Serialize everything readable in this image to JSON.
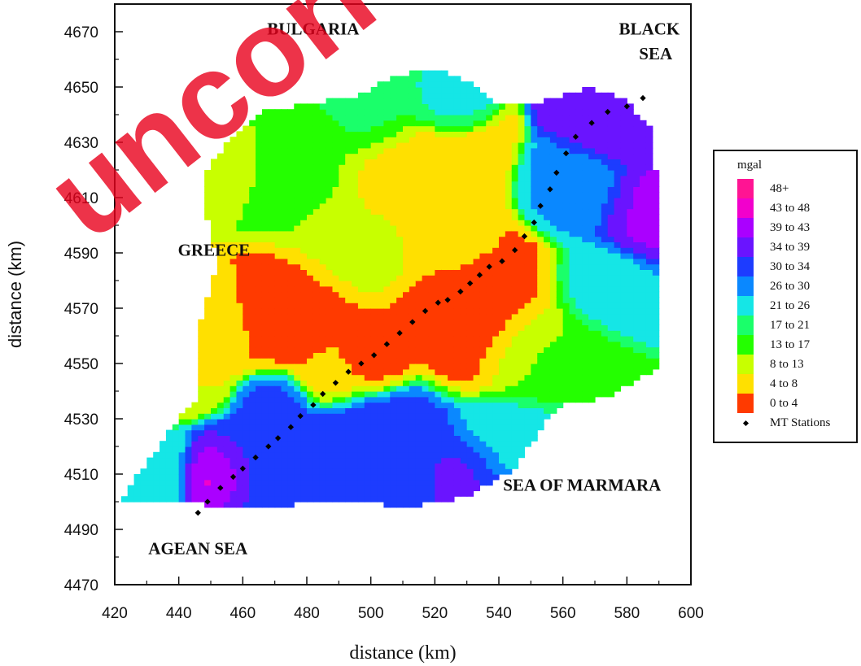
{
  "chart_data": {
    "type": "heatmap",
    "xlabel": "distance (km)",
    "ylabel": "distance (km)",
    "xlim": [
      420,
      600
    ],
    "ylim": [
      4470,
      4680
    ],
    "x_ticks": [
      420,
      440,
      460,
      480,
      500,
      520,
      540,
      560,
      580,
      600
    ],
    "y_ticks": [
      4470,
      4490,
      4510,
      4530,
      4550,
      4570,
      4590,
      4610,
      4630,
      4650,
      4670
    ],
    "legend": {
      "title": "mgal",
      "items": [
        "48+",
        "43 to 48",
        "39 to 43",
        "34 to 39",
        "30 to 34",
        "26 to 30",
        "21 to 26",
        "17 to 21",
        "13 to 17",
        "8 to 13",
        "4 to 8",
        "0 to 4"
      ],
      "colors": [
        "#ff1493",
        "#f200cc",
        "#aa00ff",
        "#6a14ff",
        "#1d3cff",
        "#0a88ff",
        "#15e6e6",
        "#1aff6a",
        "#24ff00",
        "#c8ff00",
        "#ffe000",
        "#ff3a00"
      ],
      "marker_label": "MT Stations"
    },
    "regions": [
      {
        "text": "BULGARIA",
        "x": 482,
        "y": 4669
      },
      {
        "text": "BLACK",
        "x": 587,
        "y": 4669
      },
      {
        "text": "SEA",
        "x": 589,
        "y": 4660
      },
      {
        "text": "GREECE",
        "x": 451,
        "y": 4589
      },
      {
        "text": "SEA OF MARMARA",
        "x": 566,
        "y": 4504
      },
      {
        "text": "AGEAN SEA",
        "x": 446,
        "y": 4481
      }
    ],
    "stations": [
      [
        446,
        4496
      ],
      [
        449,
        4500
      ],
      [
        453,
        4505
      ],
      [
        457,
        4509
      ],
      [
        460,
        4512
      ],
      [
        464,
        4516
      ],
      [
        468,
        4520
      ],
      [
        471,
        4523
      ],
      [
        475,
        4527
      ],
      [
        478,
        4531
      ],
      [
        482,
        4535
      ],
      [
        485,
        4539
      ],
      [
        489,
        4543
      ],
      [
        493,
        4547
      ],
      [
        497,
        4550
      ],
      [
        501,
        4553
      ],
      [
        505,
        4557
      ],
      [
        509,
        4561
      ],
      [
        513,
        4565
      ],
      [
        517,
        4569
      ],
      [
        521,
        4572
      ],
      [
        524,
        4573
      ],
      [
        528,
        4576
      ],
      [
        531,
        4579
      ],
      [
        534,
        4582
      ],
      [
        537,
        4585
      ],
      [
        541,
        4587
      ],
      [
        545,
        4591
      ],
      [
        548,
        4596
      ],
      [
        551,
        4601
      ],
      [
        553,
        4607
      ],
      [
        556,
        4613
      ],
      [
        558,
        4619
      ],
      [
        561,
        4626
      ],
      [
        564,
        4632
      ],
      [
        569,
        4637
      ],
      [
        574,
        4641
      ],
      [
        580,
        4643
      ],
      [
        585,
        4646
      ]
    ]
  },
  "watermark": "uncorrected proof"
}
